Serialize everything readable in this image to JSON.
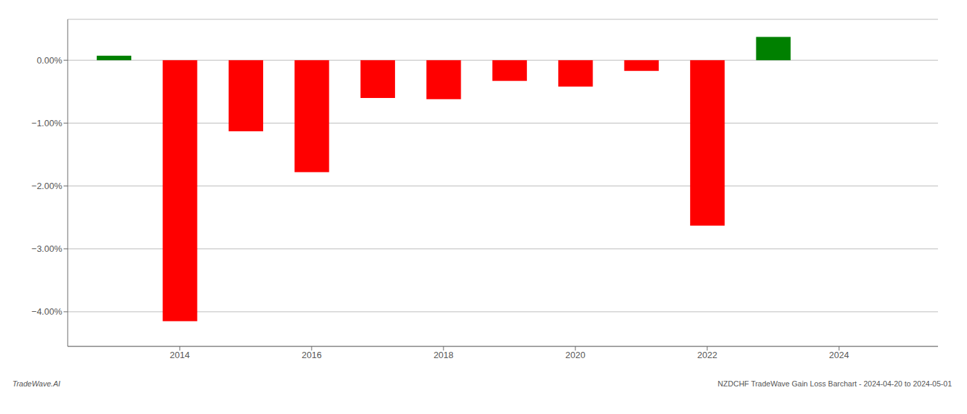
{
  "chart_data": {
    "type": "bar",
    "x": [
      2013,
      2014,
      2015,
      2016,
      2017,
      2018,
      2019,
      2020,
      2021,
      2022,
      2023
    ],
    "values": [
      0.07,
      -4.15,
      -1.13,
      -1.78,
      -0.6,
      -0.62,
      -0.33,
      -0.42,
      -0.17,
      -2.63,
      0.37
    ],
    "colors": [
      "#008000",
      "#ff0000",
      "#ff0000",
      "#ff0000",
      "#ff0000",
      "#ff0000",
      "#ff0000",
      "#ff0000",
      "#ff0000",
      "#ff0000",
      "#008000"
    ],
    "xlim": [
      2012.3,
      2025.5
    ],
    "xticks": [
      2014,
      2016,
      2018,
      2020,
      2022,
      2024
    ],
    "ylim": [
      -4.55,
      0.65
    ],
    "yticks": [
      {
        "value": 0,
        "label": "0.00%"
      },
      {
        "value": -1,
        "label": "−1.00%"
      },
      {
        "value": -2,
        "label": "−2.00%"
      },
      {
        "value": -3,
        "label": "−3.00%"
      },
      {
        "value": -4,
        "label": "−4.00%"
      }
    ],
    "grid": true,
    "annotations": [
      "TradeWave.AI",
      "NZDCHF TradeWave Gain Loss Barchart - 2024-04-20 to 2024-05-01"
    ]
  }
}
